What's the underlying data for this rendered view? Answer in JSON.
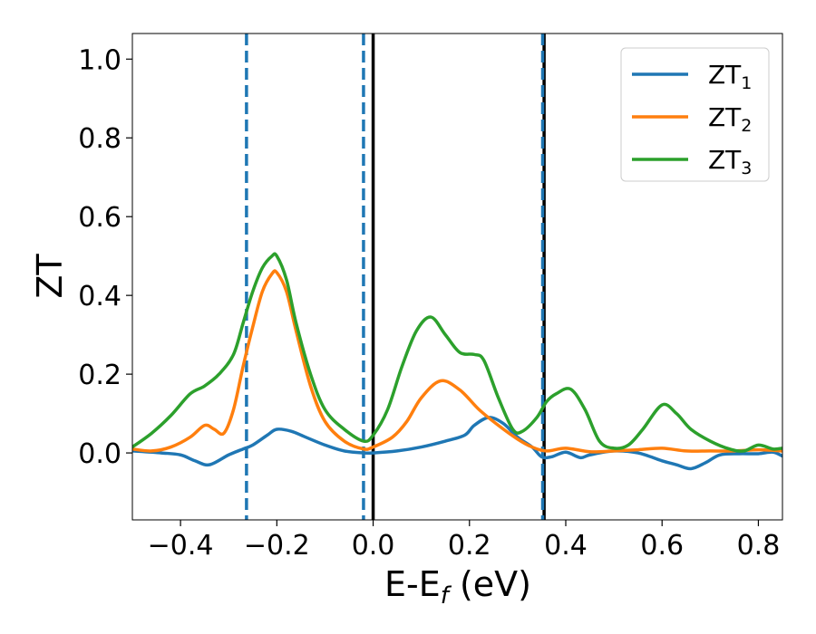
{
  "chart_data": {
    "type": "line",
    "title": "",
    "xlabel_main": "E-E",
    "xlabel_sub": "f",
    "xlabel_unit": " (eV)",
    "ylabel": "ZT",
    "xlim": [
      -0.5,
      0.85
    ],
    "ylim": [
      -0.17,
      1.065
    ],
    "xticks": [
      -0.4,
      -0.2,
      0.0,
      0.2,
      0.4,
      0.6,
      0.8
    ],
    "xtick_labels": [
      "−0.4",
      "−0.2",
      "0.0",
      "0.2",
      "0.4",
      "0.6",
      "0.8"
    ],
    "yticks": [
      0.0,
      0.2,
      0.4,
      0.6,
      0.8,
      1.0
    ],
    "ytick_labels": [
      "0.0",
      "0.2",
      "0.4",
      "0.6",
      "0.8",
      "1.0"
    ],
    "grid": false,
    "legend_position": "top-right",
    "vlines": [
      {
        "x": -0.263,
        "style": "dashed",
        "color": "#1f77b4"
      },
      {
        "x": -0.02,
        "style": "dashed",
        "color": "#1f77b4"
      },
      {
        "x": 0.0,
        "style": "solid",
        "color": "#000000"
      },
      {
        "x": 0.355,
        "style": "solid",
        "color": "#000000"
      },
      {
        "x": 0.352,
        "style": "dashed",
        "color": "#1f77b4"
      }
    ],
    "series": [
      {
        "legend_main": "ZT",
        "legend_sub": "1",
        "color": "#1f77b4",
        "x": [
          -0.5,
          -0.44,
          -0.4,
          -0.37,
          -0.34,
          -0.3,
          -0.27,
          -0.25,
          -0.22,
          -0.2,
          -0.17,
          -0.14,
          -0.1,
          -0.06,
          -0.02,
          0.0,
          0.05,
          0.1,
          0.15,
          0.19,
          0.21,
          0.24,
          0.27,
          0.3,
          0.33,
          0.35,
          0.37,
          0.4,
          0.43,
          0.45,
          0.5,
          0.55,
          0.6,
          0.63,
          0.66,
          0.69,
          0.72,
          0.76,
          0.8,
          0.83,
          0.85
        ],
        "y": [
          0.005,
          0.0,
          -0.005,
          -0.02,
          -0.03,
          -0.005,
          0.01,
          0.02,
          0.045,
          0.06,
          0.055,
          0.04,
          0.02,
          0.005,
          0.0,
          0.0,
          0.005,
          0.015,
          0.03,
          0.045,
          0.07,
          0.09,
          0.075,
          0.04,
          0.015,
          -0.01,
          -0.01,
          0.002,
          -0.012,
          -0.005,
          0.005,
          0.0,
          -0.02,
          -0.03,
          -0.04,
          -0.025,
          -0.005,
          -0.002,
          -0.002,
          0.002,
          -0.008
        ]
      },
      {
        "legend_main": "ZT",
        "legend_sub": "2",
        "color": "#ff7f0e",
        "x": [
          -0.5,
          -0.46,
          -0.42,
          -0.38,
          -0.35,
          -0.33,
          -0.31,
          -0.29,
          -0.27,
          -0.25,
          -0.23,
          -0.21,
          -0.2,
          -0.18,
          -0.16,
          -0.13,
          -0.1,
          -0.06,
          -0.02,
          0.0,
          0.04,
          0.07,
          0.1,
          0.14,
          0.18,
          0.22,
          0.26,
          0.3,
          0.33,
          0.36,
          0.4,
          0.45,
          0.5,
          0.55,
          0.6,
          0.65,
          0.7,
          0.75,
          0.8,
          0.85
        ],
        "y": [
          0.01,
          0.005,
          0.015,
          0.04,
          0.07,
          0.06,
          0.05,
          0.11,
          0.22,
          0.32,
          0.41,
          0.455,
          0.458,
          0.41,
          0.31,
          0.17,
          0.08,
          0.03,
          0.01,
          0.015,
          0.04,
          0.08,
          0.14,
          0.183,
          0.16,
          0.11,
          0.07,
          0.035,
          0.015,
          0.005,
          0.012,
          0.003,
          0.005,
          0.008,
          0.012,
          0.005,
          0.005,
          0.005,
          0.008,
          0.005
        ]
      },
      {
        "legend_main": "ZT",
        "legend_sub": "3",
        "color": "#2ca02c",
        "x": [
          -0.5,
          -0.46,
          -0.42,
          -0.38,
          -0.35,
          -0.32,
          -0.29,
          -0.27,
          -0.25,
          -0.23,
          -0.21,
          -0.2,
          -0.18,
          -0.16,
          -0.13,
          -0.1,
          -0.06,
          -0.02,
          0.0,
          0.03,
          0.06,
          0.09,
          0.12,
          0.15,
          0.18,
          0.21,
          0.23,
          0.26,
          0.29,
          0.31,
          0.34,
          0.36,
          0.38,
          0.41,
          0.44,
          0.47,
          0.5,
          0.53,
          0.56,
          0.6,
          0.63,
          0.66,
          0.7,
          0.74,
          0.77,
          0.8,
          0.83,
          0.85
        ],
        "y": [
          0.015,
          0.05,
          0.095,
          0.15,
          0.17,
          0.2,
          0.25,
          0.33,
          0.41,
          0.47,
          0.5,
          0.5,
          0.44,
          0.33,
          0.2,
          0.11,
          0.06,
          0.03,
          0.045,
          0.11,
          0.22,
          0.31,
          0.345,
          0.3,
          0.255,
          0.25,
          0.235,
          0.14,
          0.06,
          0.055,
          0.09,
          0.13,
          0.15,
          0.162,
          0.11,
          0.03,
          0.012,
          0.02,
          0.06,
          0.122,
          0.1,
          0.06,
          0.03,
          0.01,
          0.005,
          0.02,
          0.01,
          0.012
        ]
      }
    ]
  }
}
